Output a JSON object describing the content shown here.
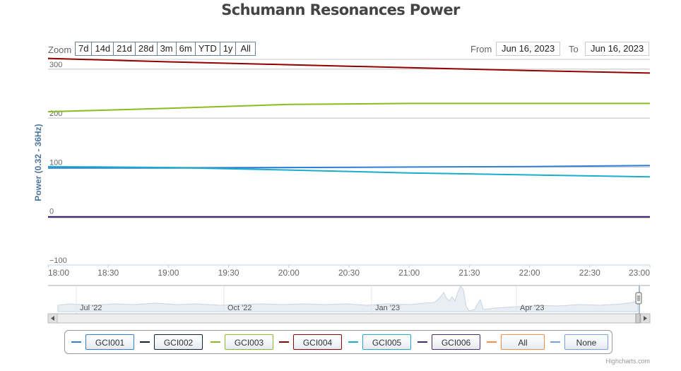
{
  "chart_data": {
    "type": "line",
    "title": "Schumann Resonances Power",
    "ylabel": "Power (0.32 - 36Hz)",
    "xlabel": "",
    "x_range": [
      "18:00",
      "23:00"
    ],
    "x_ticks": [
      "18:00",
      "18:30",
      "19:00",
      "19:30",
      "20:00",
      "20:30",
      "21:00",
      "21:30",
      "22:00",
      "22:30",
      "23:00"
    ],
    "ylim": [
      -100,
      320
    ],
    "y_ticks": [
      -100,
      0,
      100,
      200,
      300
    ],
    "grid": true,
    "legend_position": "bottom",
    "series": [
      {
        "name": "GCI001",
        "color": "#2f7ed8",
        "x": [
          "18:00",
          "19:00",
          "20:00",
          "21:00",
          "22:00",
          "23:00"
        ],
        "values": [
          98,
          98,
          99,
          100,
          101,
          103
        ]
      },
      {
        "name": "GCI002",
        "color": "#0d233a",
        "x": [
          "18:00",
          "23:00"
        ],
        "values": [
          -2,
          -2
        ]
      },
      {
        "name": "GCI003",
        "color": "#8bbc21",
        "x": [
          "18:00",
          "19:00",
          "20:00",
          "20:30",
          "21:00",
          "22:00",
          "23:00"
        ],
        "values": [
          213,
          220,
          228,
          229,
          230,
          230,
          230
        ]
      },
      {
        "name": "GCI004",
        "color": "#910000",
        "x": [
          "18:00",
          "19:00",
          "20:00",
          "21:00",
          "22:00",
          "23:00"
        ],
        "values": [
          322,
          315,
          309,
          303,
          297,
          292
        ]
      },
      {
        "name": "GCI005",
        "color": "#1aadce",
        "x": [
          "18:00",
          "19:00",
          "20:00",
          "21:00",
          "22:00",
          "23:00"
        ],
        "values": [
          101,
          99,
          94,
          88,
          84,
          80
        ]
      },
      {
        "name": "GCI006",
        "color": "#492970",
        "x": [
          "18:00",
          "23:00"
        ],
        "values": [
          -2,
          -2
        ]
      }
    ]
  },
  "range_selector": {
    "zoom_label": "Zoom",
    "buttons": [
      "7d",
      "14d",
      "21d",
      "28d",
      "3m",
      "6m",
      "YTD",
      "1y",
      "All"
    ],
    "from_label": "From",
    "from_value": "Jun 16, 2023",
    "to_label": "To",
    "to_value": "Jun 16, 2023"
  },
  "navigator": {
    "ticks": [
      "Jul '22",
      "Oct '22",
      "Jan '23",
      "Apr '23"
    ]
  },
  "legend": {
    "items": [
      {
        "label": "GCI001",
        "color": "#2f7ed8"
      },
      {
        "label": "GCI002",
        "color": "#0d233a"
      },
      {
        "label": "GCI003",
        "color": "#8bbc21"
      },
      {
        "label": "GCI004",
        "color": "#910000"
      },
      {
        "label": "GCI005",
        "color": "#1aadce"
      },
      {
        "label": "GCI006",
        "color": "#492970"
      },
      {
        "label": "All",
        "color": "#f28f43"
      },
      {
        "label": "None",
        "color": "#77a1e5"
      }
    ]
  },
  "credits": "Highcharts.com"
}
